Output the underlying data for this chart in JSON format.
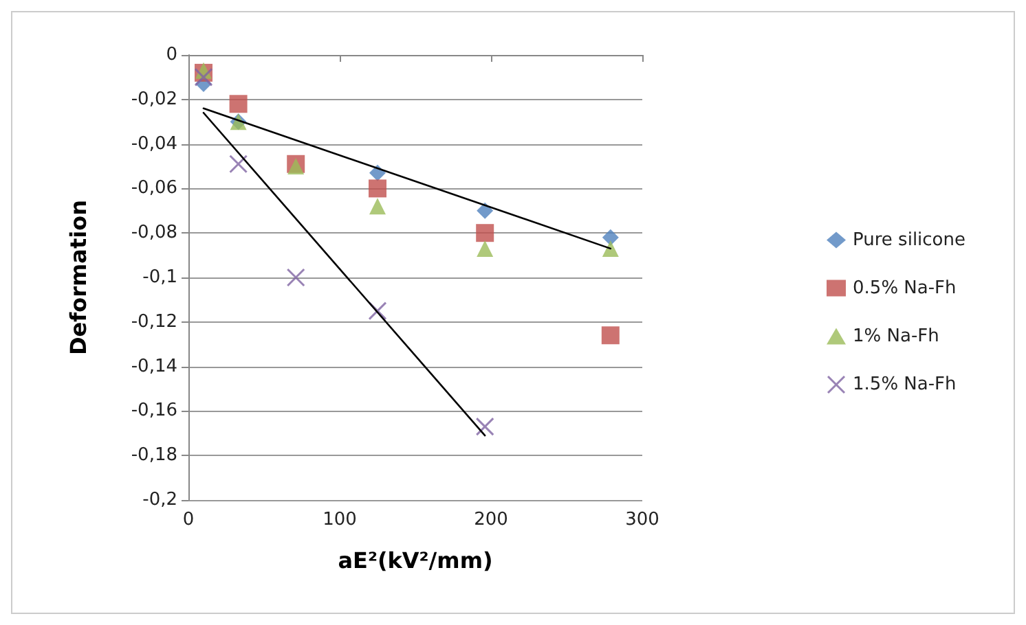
{
  "chart_data": {
    "type": "scatter",
    "xlabel": "aE²(kV²/mm)",
    "ylabel": "Deformation",
    "xlim": [
      0,
      300
    ],
    "xticks": [
      0,
      100,
      200,
      300
    ],
    "ylim": [
      -0.2,
      0
    ],
    "yticks": [
      {
        "value": -0.2,
        "label": "-0,2"
      },
      {
        "value": -0.18,
        "label": "-0,18"
      },
      {
        "value": -0.16,
        "label": "-0,16"
      },
      {
        "value": -0.14,
        "label": "-0,14"
      },
      {
        "value": -0.12,
        "label": "-0,12"
      },
      {
        "value": -0.1,
        "label": "-0,1"
      },
      {
        "value": -0.08,
        "label": "-0,08"
      },
      {
        "value": -0.06,
        "label": "-0,06"
      },
      {
        "value": -0.04,
        "label": "-0,04"
      },
      {
        "value": -0.02,
        "label": "-0,02"
      },
      0
    ],
    "grid": "y",
    "legend": "right",
    "series": [
      {
        "name": "Pure silicone",
        "color": "#4f81bd",
        "marker": "diamond",
        "x": [
          10,
          33,
          71,
          125,
          196,
          279
        ],
        "values": [
          -0.013,
          -0.03,
          null,
          -0.053,
          -0.07,
          -0.082
        ]
      },
      {
        "name": "0.5% Na-Fh",
        "color": "#c0504d",
        "marker": "square",
        "x": [
          10,
          33,
          71,
          125,
          196,
          279
        ],
        "values": [
          -0.008,
          -0.022,
          -0.049,
          -0.06,
          -0.08,
          -0.126
        ]
      },
      {
        "name": "1% Na-Fh",
        "color": "#9bbb59",
        "marker": "triangle",
        "x": [
          10,
          33,
          71,
          125,
          196,
          279
        ],
        "values": [
          -0.007,
          -0.03,
          -0.05,
          -0.068,
          -0.087,
          -0.087
        ]
      },
      {
        "name": "1.5% Na-Fh",
        "color": "#8064a2",
        "marker": "cross",
        "x": [
          10,
          33,
          71,
          125,
          196
        ],
        "values": [
          -0.01,
          -0.049,
          -0.1,
          -0.115,
          -0.167
        ]
      },
      {
        "type": "line",
        "color": "#000000",
        "marker": "none",
        "x": [
          10,
          279
        ],
        "values": [
          -0.024,
          -0.087
        ]
      },
      {
        "type": "line",
        "color": "#000000",
        "marker": "none",
        "x": [
          10,
          196
        ],
        "values": [
          -0.026,
          -0.171
        ]
      }
    ]
  }
}
